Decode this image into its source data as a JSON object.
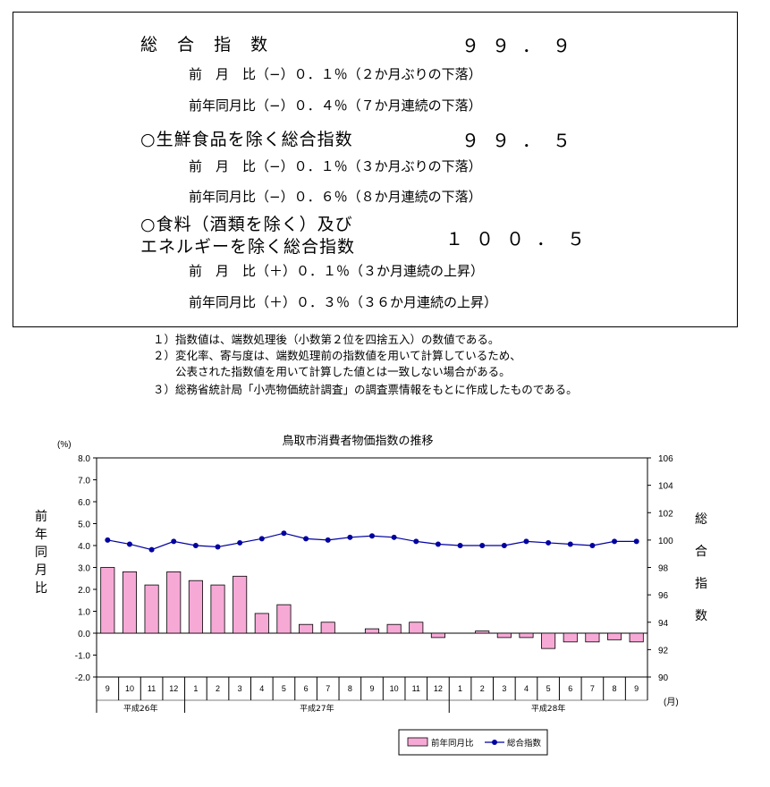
{
  "summary": {
    "headline": {
      "label": "総 合 指 数",
      "value": "９９．９"
    },
    "headline_mom": "前　月　比（−）０．１％（２か月ぶりの下落）",
    "headline_yoy": "前年同月比（−）０．４％（７か月連続の下落）",
    "core": {
      "label": "○生鮮食品を除く総合指数",
      "value": "９９．５"
    },
    "core_mom": "前　月　比（−）０．１％（３か月ぶりの下落）",
    "core_yoy": "前年同月比（−）０．６％（８か月連続の下落）",
    "corecore": {
      "label_line1": "○食料（酒類を除く）及び",
      "label_line2": "エネルギーを除く総合指数",
      "value": "１００．５"
    },
    "corecore_mom": "前　月　比（＋）０．１％（３か月連続の上昇）",
    "corecore_yoy": "前年同月比（＋）０．３％（３６か月連続の上昇）"
  },
  "notes": [
    "１）指数値は、端数処理後（小数第２位を四捨五入）の数値である。",
    "２）変化率、寄与度は、端数処理前の指数値を用いて計算しているため、",
    "　　公表された指数値を用いて計算した値とは一致しない場合がある。",
    "３）総務省統計局「小売物価統計調査」の調査票情報をもとに作成したものである。"
  ],
  "chart_data": {
    "type": "bar",
    "title": "鳥取市消費者物価指数の推移",
    "left_axis": {
      "unit": "(%)",
      "label": "前年同月比",
      "ylim": [
        -2.0,
        8.0
      ],
      "ticks": [
        "8.0",
        "7.0",
        "6.0",
        "5.0",
        "4.0",
        "3.0",
        "2.0",
        "1.0",
        "0.0",
        "-1.0",
        "-2.0"
      ]
    },
    "right_axis": {
      "unit": "",
      "label": "総合指数",
      "ylim": [
        90,
        106
      ],
      "ticks": [
        "106",
        "104",
        "102",
        "100",
        "98",
        "96",
        "94",
        "92",
        "90"
      ]
    },
    "x_unit": "(月)",
    "categories": [
      "9",
      "10",
      "11",
      "12",
      "1",
      "2",
      "3",
      "4",
      "5",
      "6",
      "7",
      "8",
      "9",
      "10",
      "11",
      "12",
      "1",
      "2",
      "3",
      "4",
      "5",
      "6",
      "7",
      "8",
      "9"
    ],
    "year_groups": [
      {
        "label": "平成26年",
        "start": 0,
        "end": 3
      },
      {
        "label": "平成27年",
        "start": 4,
        "end": 15
      },
      {
        "label": "平成28年",
        "start": 16,
        "end": 24
      }
    ],
    "series": [
      {
        "name": "前年同月比",
        "type": "bar",
        "axis": "left",
        "color": "#f7a9d6",
        "values": [
          3.0,
          2.8,
          2.2,
          2.8,
          2.4,
          2.2,
          2.6,
          0.9,
          1.3,
          0.4,
          0.5,
          0.0,
          0.2,
          0.4,
          0.5,
          -0.2,
          0.0,
          0.1,
          -0.2,
          -0.2,
          -0.7,
          -0.4,
          -0.4,
          -0.3,
          -0.4
        ]
      },
      {
        "name": "総合指数",
        "type": "line",
        "axis": "right",
        "color": "#0000a0",
        "values": [
          100.0,
          99.7,
          99.3,
          99.9,
          99.6,
          99.5,
          99.8,
          100.1,
          100.5,
          100.1,
          100.0,
          100.2,
          100.3,
          100.2,
          99.9,
          99.7,
          99.6,
          99.6,
          99.6,
          99.9,
          99.8,
          99.7,
          99.6,
          99.9,
          99.9
        ]
      }
    ],
    "legend": {
      "position": "bottom-right"
    },
    "grid": false
  }
}
